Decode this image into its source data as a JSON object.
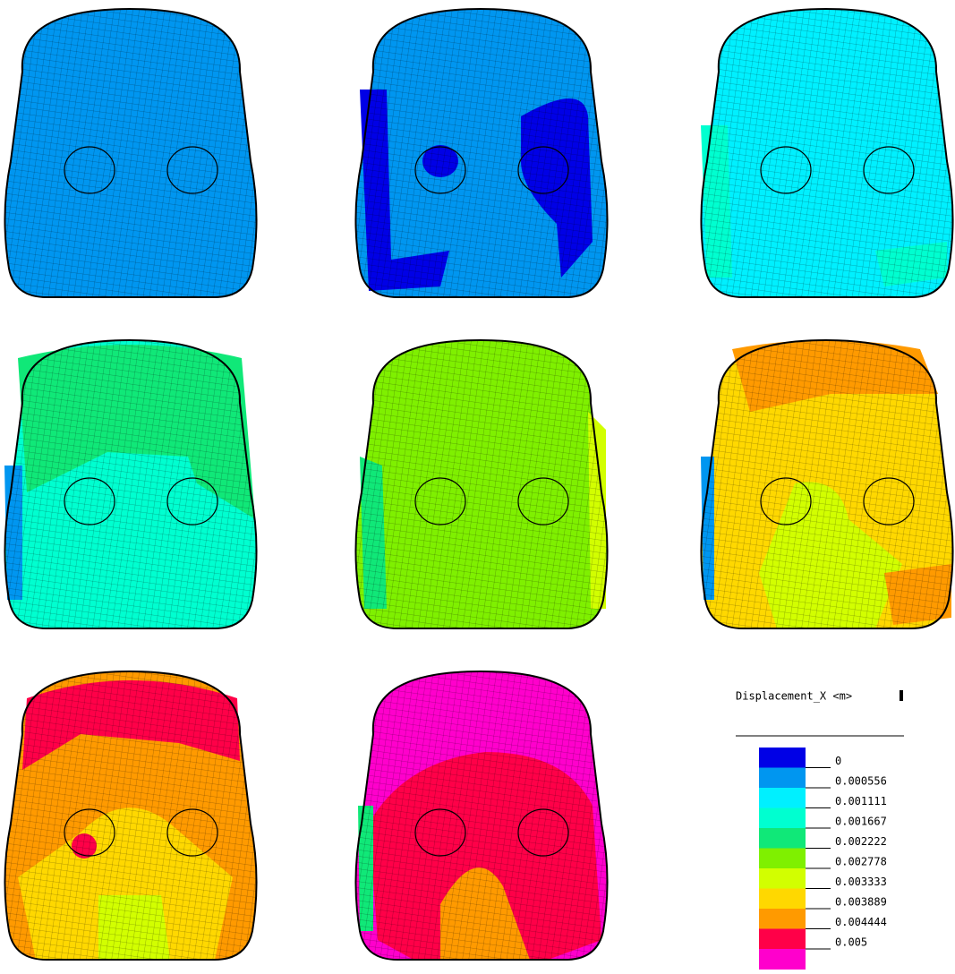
{
  "legend": {
    "title": "Displacement_X <m>",
    "labels": [
      "0",
      "0.000556",
      "0.001111",
      "0.001667",
      "0.002222",
      "0.002778",
      "0.003333",
      "0.003889",
      "0.004444",
      "0.005"
    ],
    "colors": [
      "#0000e6",
      "#0096f0",
      "#00f0ff",
      "#00ffd0",
      "#10e878",
      "#7ff000",
      "#d2ff00",
      "#ffd800",
      "#ff9a00",
      "#ff0048",
      "#ff00cc"
    ]
  }
}
